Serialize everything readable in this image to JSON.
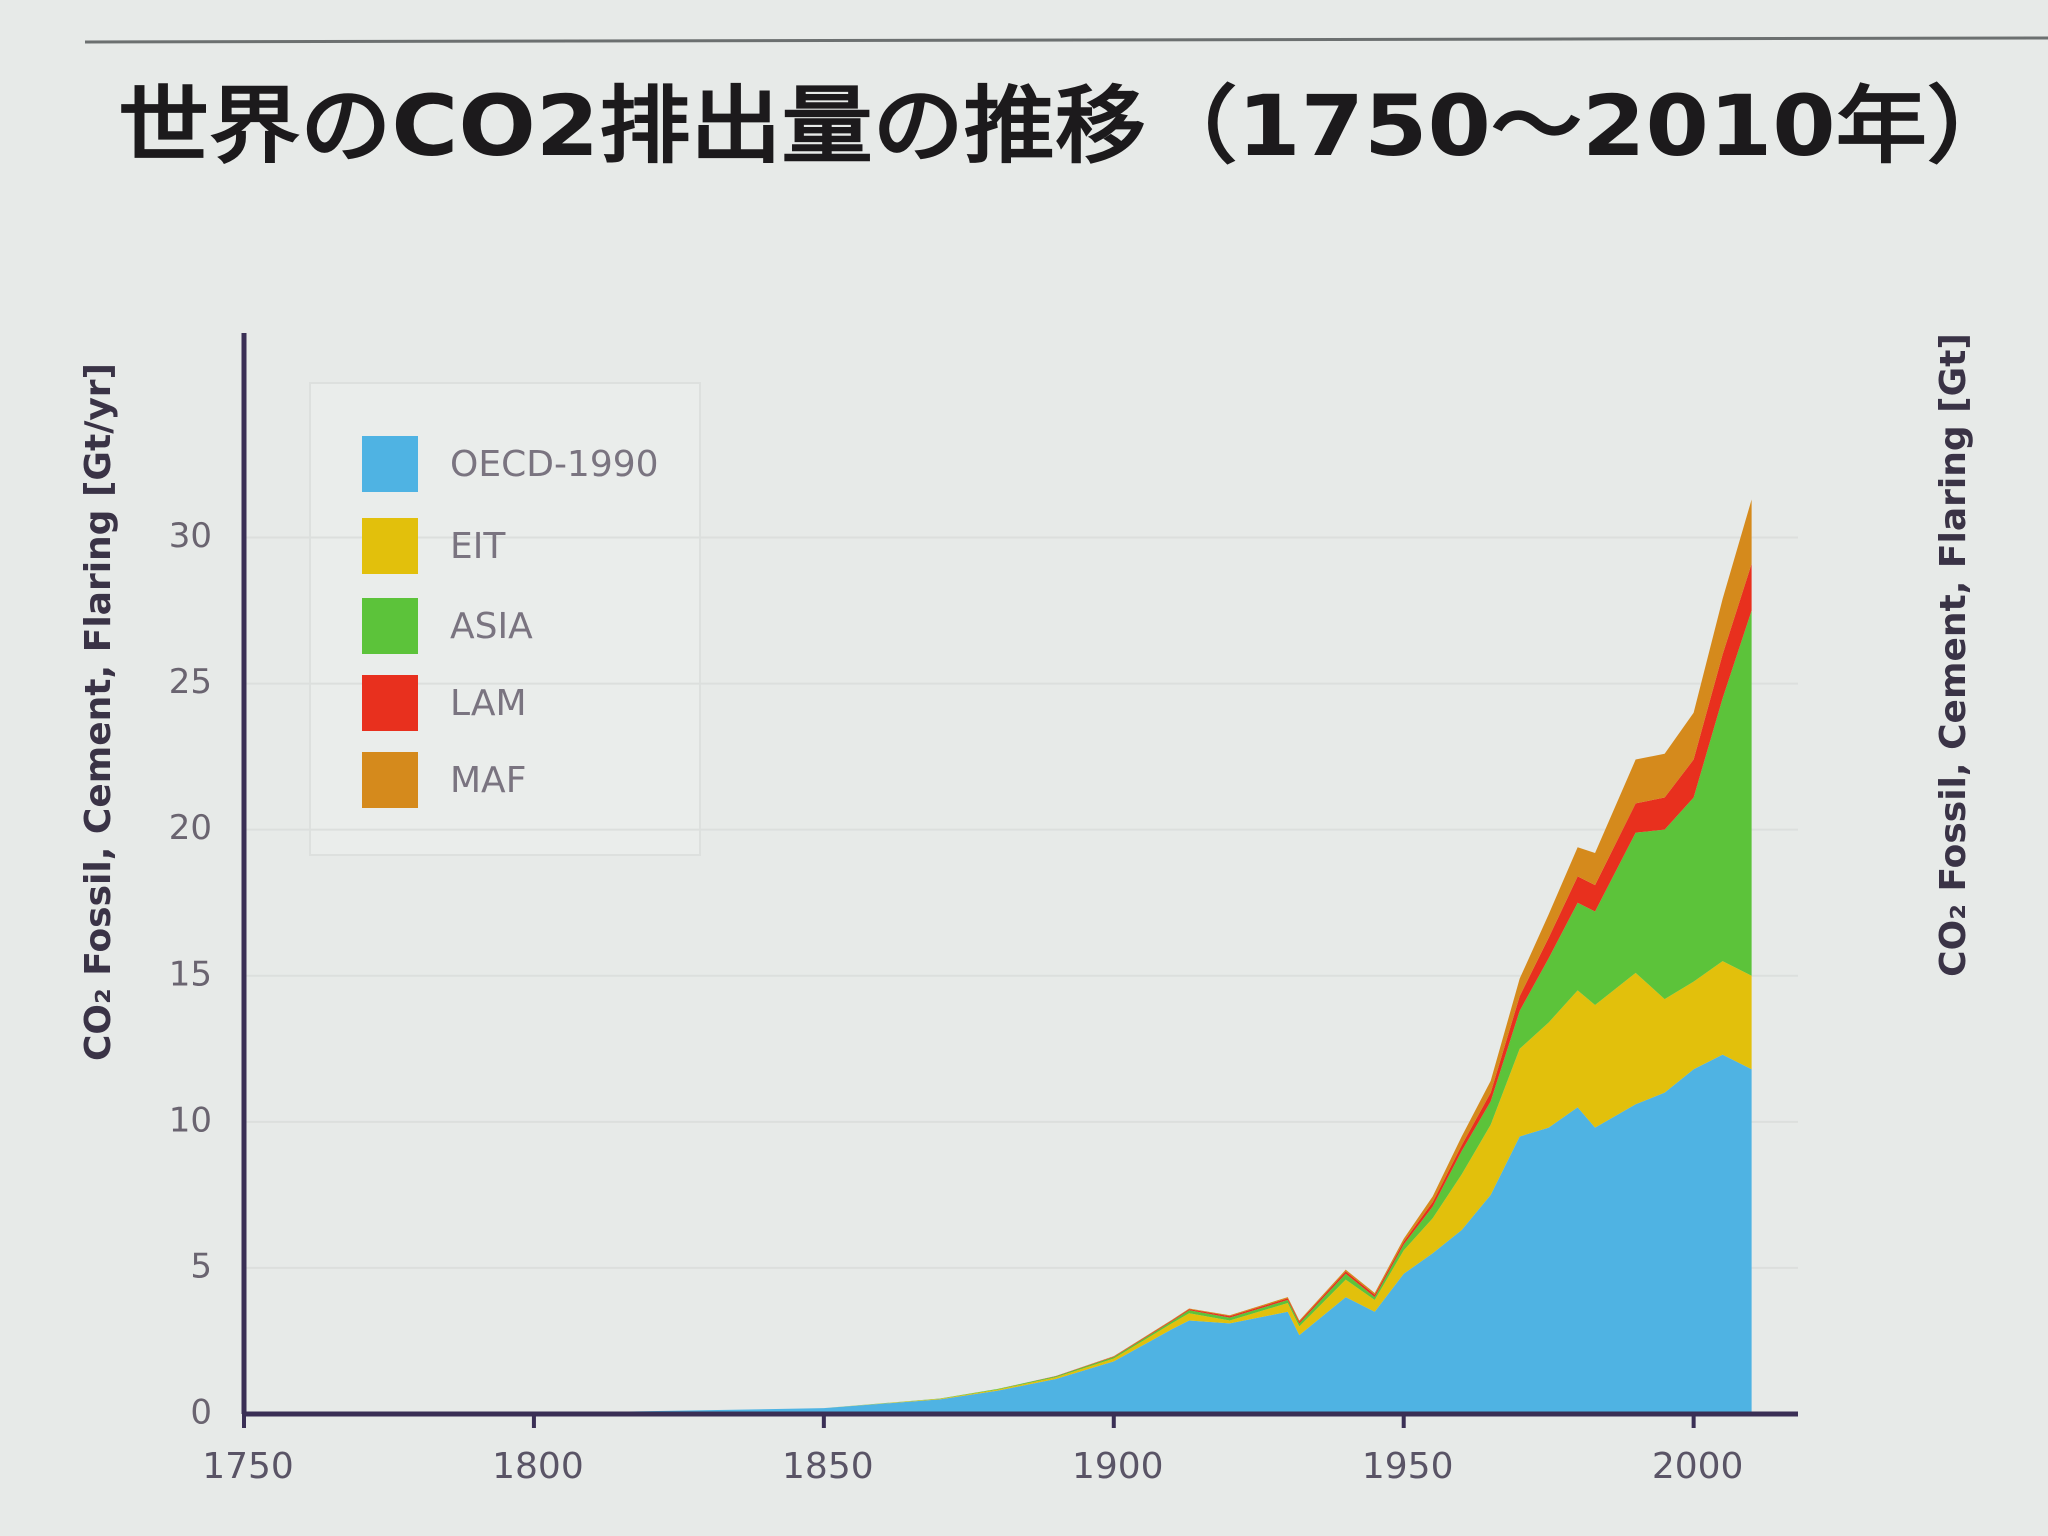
{
  "chart_data": {
    "type": "stacked_area",
    "title": "世界のCO2排出量の推移（1750〜2010年）",
    "ylabel": "CO₂ Fossil, Cement, Flaring [Gt/yr]",
    "y2label": "CO₂ Fossil, Cement, Flaring [Gt]",
    "x": [
      1750,
      1800,
      1850,
      1870,
      1880,
      1890,
      1900,
      1910,
      1913,
      1920,
      1930,
      1932,
      1940,
      1945,
      1950,
      1955,
      1960,
      1965,
      1970,
      1975,
      1980,
      1983,
      1990,
      1995,
      2000,
      2005,
      2010
    ],
    "series": [
      {
        "name": "OECD-1990",
        "color": "#4fb3e3",
        "values": [
          0.01,
          0.03,
          0.2,
          0.5,
          0.8,
          1.2,
          1.8,
          2.9,
          3.2,
          3.1,
          3.5,
          2.7,
          4.0,
          3.5,
          4.8,
          5.5,
          6.3,
          7.5,
          9.5,
          9.8,
          10.5,
          9.8,
          10.6,
          11.0,
          11.8,
          12.3,
          11.8
        ]
      },
      {
        "name": "EIT",
        "color": "#e2c00c",
        "values": [
          0,
          0,
          0,
          0.02,
          0.04,
          0.06,
          0.1,
          0.2,
          0.25,
          0.1,
          0.3,
          0.3,
          0.6,
          0.4,
          0.8,
          1.2,
          1.9,
          2.4,
          3.0,
          3.6,
          4.0,
          4.2,
          4.5,
          3.2,
          3.0,
          3.2,
          3.2
        ]
      },
      {
        "name": "ASIA",
        "color": "#5cc33a",
        "values": [
          0,
          0,
          0,
          0.01,
          0.02,
          0.03,
          0.05,
          0.07,
          0.1,
          0.1,
          0.1,
          0.1,
          0.2,
          0.1,
          0.2,
          0.4,
          0.8,
          0.8,
          1.3,
          2.2,
          3.0,
          3.2,
          4.8,
          5.8,
          6.3,
          9.0,
          12.5
        ]
      },
      {
        "name": "LAM",
        "color": "#e8301e",
        "values": [
          0,
          0,
          0,
          0,
          0,
          0.01,
          0.02,
          0.03,
          0.04,
          0.05,
          0.06,
          0.06,
          0.08,
          0.08,
          0.1,
          0.15,
          0.2,
          0.3,
          0.5,
          0.7,
          0.9,
          0.9,
          1.0,
          1.1,
          1.3,
          1.5,
          1.6
        ]
      },
      {
        "name": "MAF",
        "color": "#d58a1c",
        "values": [
          0,
          0,
          0,
          0,
          0,
          0,
          0.01,
          0.02,
          0.02,
          0.03,
          0.04,
          0.04,
          0.06,
          0.06,
          0.1,
          0.2,
          0.3,
          0.4,
          0.6,
          0.8,
          1.0,
          1.1,
          1.5,
          1.5,
          1.6,
          1.9,
          2.2
        ]
      }
    ],
    "xlim": [
      1750,
      2018
    ],
    "xticks": [
      1750,
      1800,
      1850,
      1900,
      1950,
      2000
    ],
    "ylim": [
      0,
      37
    ],
    "yticks": [
      0,
      5,
      10,
      15,
      20,
      25,
      30
    ],
    "grid": true,
    "legend": "upper left"
  }
}
